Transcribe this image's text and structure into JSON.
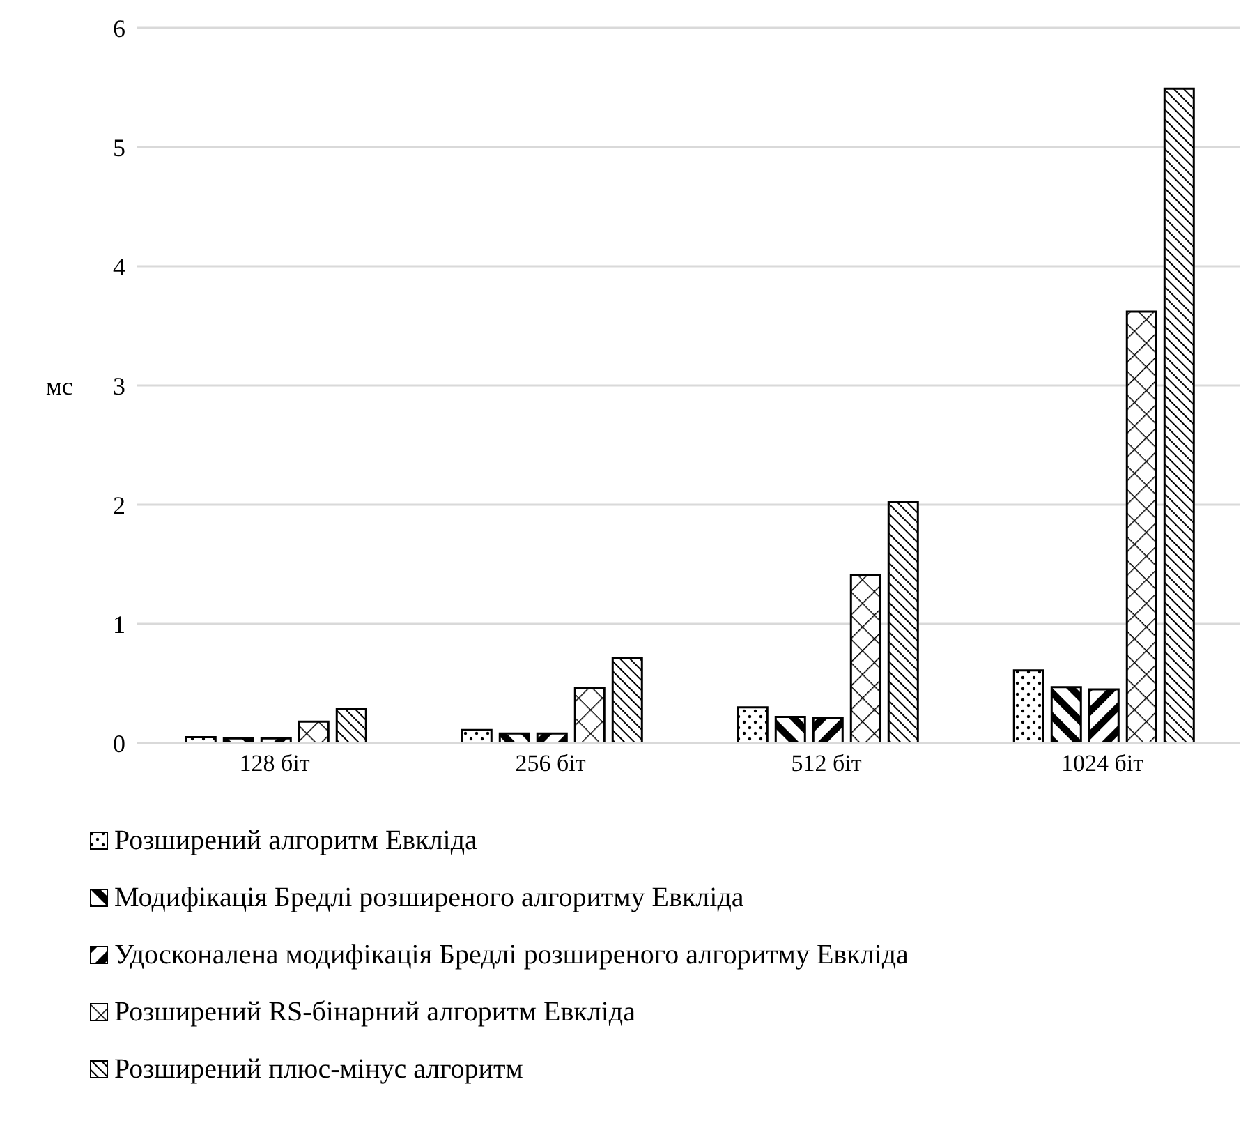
{
  "chart_data": {
    "type": "bar",
    "ylabel": "мс",
    "categories": [
      "128 біт",
      "256 біт",
      "512 біт",
      "1024 біт"
    ],
    "series": [
      {
        "name": "Розширений алгоритм Евкліда",
        "color": "#000000",
        "values": [
          0.05,
          0.11,
          0.3,
          0.61
        ]
      },
      {
        "name": "Модифікація Бредлі розширеного алгоритму Евкліда",
        "color": "#000000",
        "values": [
          0.04,
          0.08,
          0.22,
          0.47
        ]
      },
      {
        "name": "Удосконалена модифікація Бредлі розширеного алгоритму Евкліда",
        "color": "#000000",
        "values": [
          0.04,
          0.08,
          0.21,
          0.45
        ]
      },
      {
        "name": "Розширений RS-бінарний алгоритм Евкліда",
        "color": "#000000",
        "values": [
          0.18,
          0.46,
          1.41,
          3.62
        ]
      },
      {
        "name": "Розширений плюс-мінус алгоритм",
        "color": "#000000",
        "values": [
          0.29,
          0.71,
          2.02,
          5.49
        ]
      }
    ],
    "ylim": [
      0,
      6
    ],
    "yticks": [
      0,
      1,
      2,
      3,
      4,
      5,
      6
    ],
    "grid": "y",
    "legend": "bottom"
  }
}
